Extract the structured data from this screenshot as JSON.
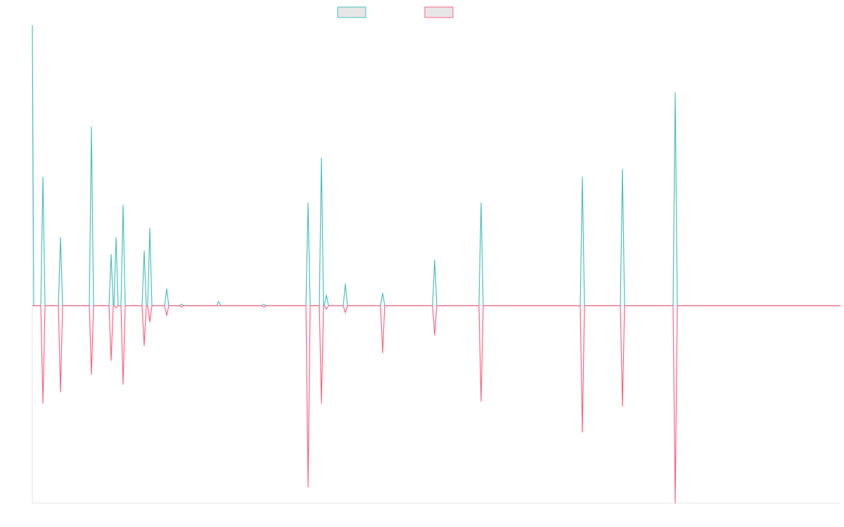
{
  "chart_data": {
    "type": "line",
    "x": [
      0,
      2,
      12,
      15,
      18,
      37,
      40,
      43,
      81,
      84,
      87,
      109,
      112,
      115,
      116,
      119,
      122,
      126,
      129,
      132,
      156,
      159,
      162,
      164,
      167,
      170,
      188,
      191,
      194,
      209,
      212,
      215,
      262,
      265,
      268,
      326,
      329,
      332,
      389,
      392,
      395,
      408,
      411,
      414,
      415,
      418,
      421,
      442,
      445,
      448,
      495,
      498,
      501,
      569,
      572,
      575,
      635,
      638,
      641,
      779,
      782,
      785,
      836,
      839,
      842,
      911,
      914,
      917,
      1149
    ],
    "series": [
      {
        "color": "#4bc0c0",
        "values": [
          399,
          0,
          0,
          183,
          0,
          0,
          97,
          0,
          0,
          254,
          0,
          0,
          73,
          0,
          0,
          97,
          0,
          0,
          143,
          0,
          0,
          78,
          0,
          0,
          110,
          0,
          0,
          24,
          0,
          0,
          2,
          0,
          0,
          6,
          0,
          0,
          2,
          0,
          0,
          146,
          0,
          0,
          210,
          0,
          0,
          15,
          0,
          0,
          31,
          0,
          0,
          18,
          0,
          0,
          65,
          0,
          0,
          146,
          0,
          0,
          183,
          0,
          0,
          194,
          0,
          0,
          303,
          0,
          0
        ]
      },
      {
        "color": "#ff6384",
        "values": [
          0,
          0,
          0,
          -139,
          0,
          0,
          -123,
          0,
          0,
          -98,
          0,
          0,
          -78,
          0,
          0,
          -3,
          0,
          0,
          -112,
          0,
          0,
          -57,
          0,
          0,
          -23,
          0,
          0,
          -14,
          0,
          0,
          -2,
          0,
          0,
          0,
          0,
          0,
          -2,
          0,
          0,
          -258,
          0,
          0,
          -139,
          0,
          0,
          -5,
          0,
          0,
          -10,
          0,
          0,
          -67,
          0,
          0,
          -42,
          0,
          0,
          -136,
          0,
          0,
          -180,
          0,
          0,
          -143,
          0,
          0,
          -281,
          0,
          0
        ]
      }
    ],
    "xlim": [
      0,
      1149
    ],
    "ylim": [
      -281,
      399
    ]
  }
}
